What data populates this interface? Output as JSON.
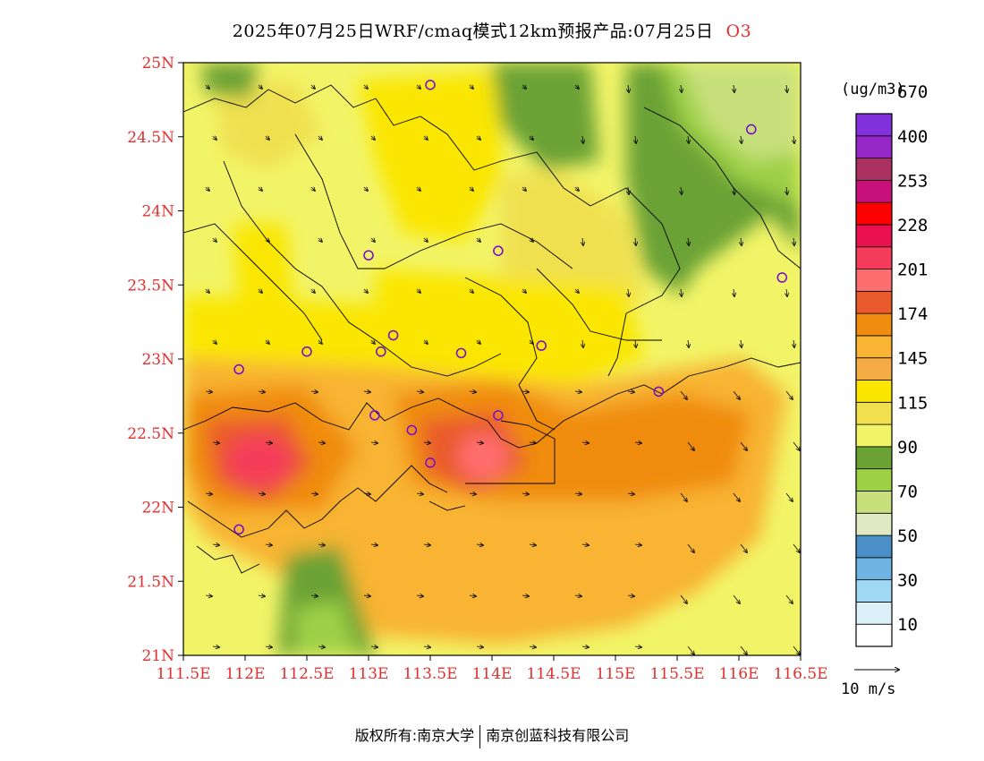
{
  "title": {
    "text": "2025年07月25日WRF/cmaq模式12km预报产品:07月25日",
    "pollutant": "O3"
  },
  "map": {
    "lat_ticks": [
      "25N",
      "24.5N",
      "24N",
      "23.5N",
      "23N",
      "22.5N",
      "22N",
      "21.5N",
      "21N"
    ],
    "lon_ticks": [
      "111.5E",
      "112E",
      "112.5E",
      "113E",
      "113.5E",
      "114E",
      "114.5E",
      "115E",
      "115.5E",
      "116E",
      "116.5E"
    ],
    "extent": {
      "lon": [
        111.5,
        116.5
      ],
      "lat": [
        21,
        25
      ]
    },
    "tick_color": "#e03030",
    "stations": [
      [
        113.5,
        24.85
      ],
      [
        116.1,
        24.55
      ],
      [
        113.0,
        23.7
      ],
      [
        114.05,
        23.73
      ],
      [
        116.35,
        23.55
      ],
      [
        112.5,
        23.05
      ],
      [
        113.1,
        23.05
      ],
      [
        113.2,
        23.16
      ],
      [
        113.75,
        23.04
      ],
      [
        114.4,
        23.09
      ],
      [
        111.95,
        22.93
      ],
      [
        113.05,
        22.62
      ],
      [
        113.35,
        22.52
      ],
      [
        114.05,
        22.62
      ],
      [
        113.5,
        22.3
      ],
      [
        115.35,
        22.78
      ],
      [
        111.95,
        21.85
      ]
    ],
    "station_color": "#7a14c8"
  },
  "legend": {
    "unit": "(ug/m3)",
    "colors": [
      "#ffffff",
      "#dcf0fa",
      "#a0d8f4",
      "#6eb4e2",
      "#4a8fc6",
      "#e0eac2",
      "#c8e07c",
      "#9ed046",
      "#6aa234",
      "#f2f468",
      "#f0e050",
      "#fae600",
      "#f4ac46",
      "#f8b432",
      "#f08c10",
      "#ea5a2c",
      "#ff6e6e",
      "#f53c5a",
      "#eb104e",
      "#ff0000",
      "#c8107a",
      "#aa3060",
      "#9628c8",
      "#8232dc"
    ],
    "labels": [
      "10",
      "30",
      "50",
      "70",
      "90",
      "115",
      "145",
      "174",
      "201",
      "228",
      "253",
      "400",
      "670"
    ]
  },
  "wind": {
    "ref_label": "10 m/s"
  },
  "footer": {
    "copyright": "版权所有:南京大学",
    "company": "南京创蓝科技有限公司"
  }
}
